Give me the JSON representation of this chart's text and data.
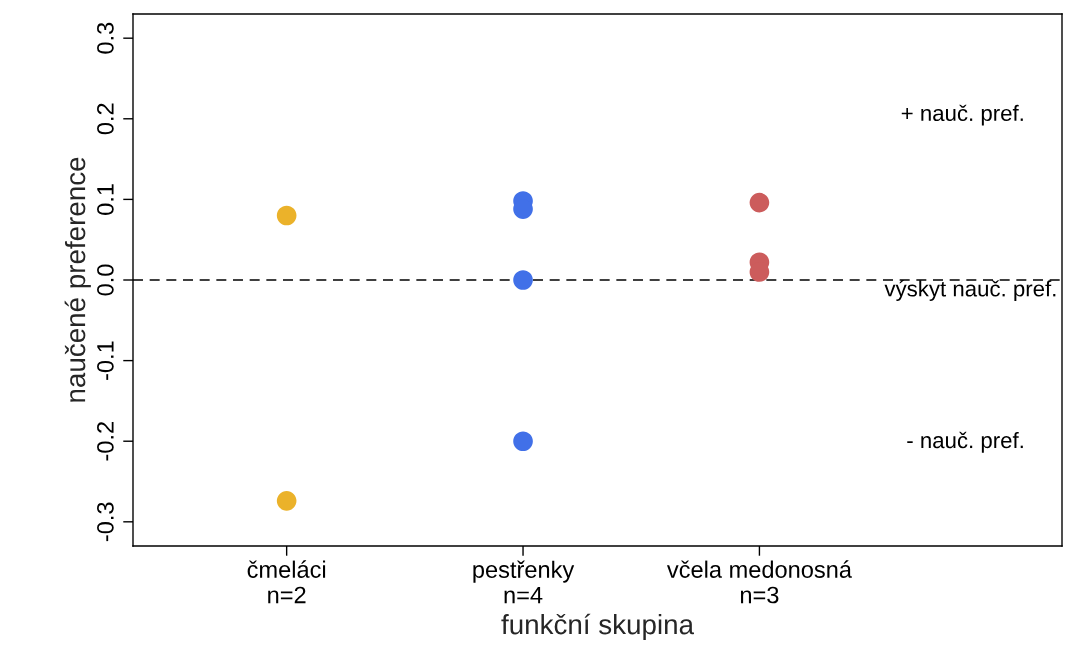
{
  "chart_data": {
    "type": "scatter",
    "xlabel": "funkční skupina",
    "ylabel": "naučené preference",
    "categories": [
      "čmeláci\nn=2",
      "pestřenky\nn=4",
      "včela medonosná\nn=3"
    ],
    "series": [
      {
        "x": [
          "čmeláci\nn=2",
          "čmeláci\nn=2"
        ],
        "values": [
          0.08,
          -0.274
        ],
        "color": "#ebb22a"
      },
      {
        "x": [
          "pestřenky\nn=4",
          "pestřenky\nn=4",
          "pestřenky\nn=4",
          "pestřenky\nn=4"
        ],
        "values": [
          0.098,
          0.088,
          0.0,
          -0.2
        ],
        "color": "#4170e8"
      },
      {
        "x": [
          "včela medonosná\nn=3",
          "včela medonosná\nn=3",
          "včela medonosná\nn=3"
        ],
        "values": [
          0.096,
          0.022,
          0.01
        ],
        "color": "#cc5c5c"
      }
    ],
    "ylim": [
      -0.33,
      0.33
    ],
    "yticks": [
      -0.3,
      -0.2,
      -0.1,
      {
        "value": 0,
        "label": "0.0"
      },
      0.1,
      0.2,
      0.3
    ],
    "marker": "circle",
    "grid": false,
    "legend": false,
    "ref_lines": [
      {
        "axis": "y",
        "value": 0,
        "label": "výskyt nauč. pref.",
        "color": "#000000",
        "line_style": "dashed"
      }
    ],
    "annotations": [
      "+ nauč. pref.",
      "- nauč. pref."
    ]
  }
}
